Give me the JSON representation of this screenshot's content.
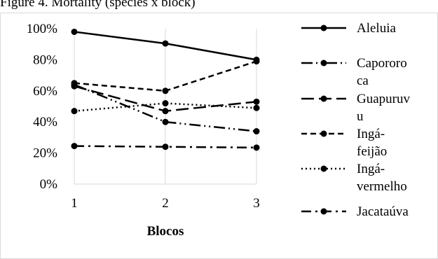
{
  "chart_data": {
    "type": "line",
    "title": "Figure 4. Mortality (species x block)",
    "xlabel": "Blocos",
    "ylabel": "",
    "categories": [
      "1",
      "2",
      "3"
    ],
    "ylim": [
      0,
      1
    ],
    "yticks": [
      "0%",
      "20%",
      "40%",
      "60%",
      "80%",
      "100%"
    ],
    "grid": "vertical",
    "legend_position": "right",
    "series": [
      {
        "name": "Aleluia",
        "values": [
          0.98,
          0.905,
          0.8
        ],
        "dash": "solid",
        "legend_lines": [
          "Aleluia"
        ]
      },
      {
        "name": "Capororoca",
        "values": [
          0.64,
          0.4,
          0.34
        ],
        "dash": "longdash-dot-dot",
        "legend_lines": [
          "Capororo",
          "ca"
        ]
      },
      {
        "name": "Guapuruvu",
        "values": [
          0.63,
          0.47,
          0.53
        ],
        "dash": "longdash",
        "legend_lines": [
          "Guapuruv",
          "u"
        ]
      },
      {
        "name": "Ingá-feijão",
        "values": [
          0.65,
          0.6,
          0.79
        ],
        "dash": "dash",
        "legend_lines": [
          "Ingá-",
          "feijão"
        ]
      },
      {
        "name": "Ingá-vermelho",
        "values": [
          0.47,
          0.52,
          0.49
        ],
        "dash": "dot",
        "legend_lines": [
          "Ingá-",
          "vermelho"
        ]
      },
      {
        "name": "Jacataúva",
        "values": [
          0.245,
          0.24,
          0.235
        ],
        "dash": "dashdot",
        "legend_lines": [
          "Jacataúva"
        ]
      }
    ]
  }
}
